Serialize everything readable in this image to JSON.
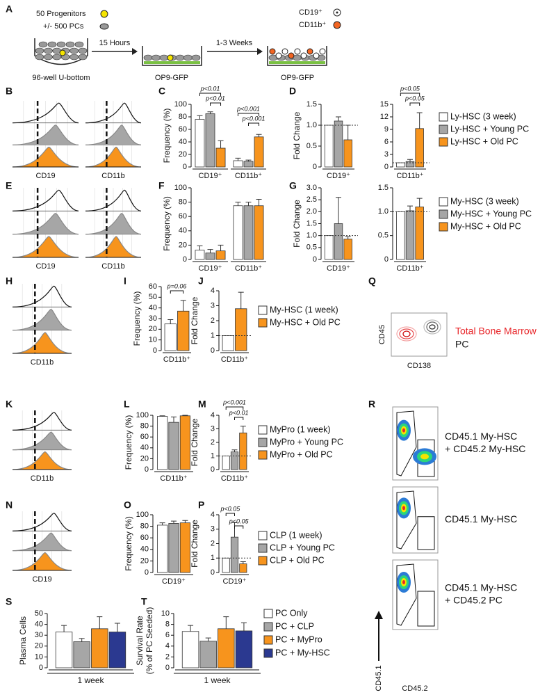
{
  "panel_labels": [
    "A",
    "B",
    "C",
    "D",
    "E",
    "F",
    "G",
    "H",
    "I",
    "J",
    "Q",
    "K",
    "L",
    "M",
    "R",
    "N",
    "O",
    "P",
    "S",
    "T"
  ],
  "schematic": {
    "progenitors": "50 Progenitors",
    "pcs": "+/- 500 PCs",
    "plate": "96-well U-bottom",
    "step1": "15 Hours",
    "stroma1": "OP9-GFP",
    "step2": "1-3 Weeks",
    "stroma2": "OP9-GFP",
    "marker1": "CD19⁺",
    "marker2": "CD11b⁺"
  },
  "histograms": {
    "B": [
      "CD19",
      "CD11b"
    ],
    "E": [
      "CD19",
      "CD11b"
    ],
    "H": [
      "CD11b"
    ],
    "K": [
      "CD11b"
    ],
    "N": [
      "CD19"
    ]
  },
  "flow_q": {
    "ylabel": "CD45",
    "xlabel": "CD138",
    "legend": [
      "Total Bone Marrow",
      "PC"
    ]
  },
  "flow_r": {
    "labels": [
      [
        "CD45.1 My-HSC",
        "+ CD45.2 My-HSC"
      ],
      [
        "CD45.1 My-HSC"
      ],
      [
        "CD45.1 My-HSC",
        "+ CD45.2 PC"
      ]
    ],
    "ylabel": "CD45.1",
    "xlabel": "CD45.2"
  },
  "chart_data": [
    {
      "type": "bar",
      "ylabel": [
        "Frequency (%)"
      ],
      "categories": [
        "CD19⁺",
        "CD11b⁺"
      ],
      "ylim": [
        0,
        100
      ],
      "yticks": [
        0,
        20,
        40,
        60,
        80,
        100
      ],
      "series": [
        {
          "color": "#ffffff",
          "values": [
            76,
            10
          ],
          "errors": [
            6,
            4
          ]
        },
        {
          "color": "#a6a6a6",
          "values": [
            85,
            9
          ],
          "errors": [
            3,
            2
          ]
        },
        {
          "color": "#f7941d",
          "values": [
            30,
            48
          ],
          "errors": [
            12,
            4
          ]
        }
      ],
      "annotations": [
        "p<0.01",
        "p<0.01",
        "p<0.001",
        "p<0.001"
      ]
    },
    {
      "type": "bar",
      "ylabel": [
        "Fold Change"
      ],
      "categories": [
        "CD19⁺"
      ],
      "ylim": [
        0,
        1.5
      ],
      "yticks": [
        0,
        0.5,
        {
          "value": 1,
          "label": "1.0"
        },
        1.5
      ],
      "refline": 1,
      "series": [
        {
          "color": "#ffffff",
          "values": [
            1
          ],
          "errors": [
            null
          ]
        },
        {
          "color": "#a6a6a6",
          "values": [
            1.1
          ],
          "errors": [
            0.1
          ]
        },
        {
          "color": "#f7941d",
          "values": [
            0.65
          ],
          "errors": [
            0.35
          ]
        }
      ]
    },
    {
      "type": "bar",
      "categories": [
        "CD11b⁺"
      ],
      "ylim": [
        0,
        15
      ],
      "yticks": [
        0,
        3,
        6,
        9,
        12,
        15
      ],
      "refline": 1,
      "series": [
        {
          "name": "Ly-HSC (3 week)",
          "color": "#ffffff",
          "values": [
            1
          ],
          "errors": [
            null
          ]
        },
        {
          "name": "Ly-HSC + Young PC",
          "color": "#a6a6a6",
          "values": [
            1.3
          ],
          "errors": [
            0.5
          ]
        },
        {
          "name": "Ly-HSC + Old PC",
          "color": "#f7941d",
          "values": [
            9.2
          ],
          "errors": [
            3.8
          ]
        }
      ],
      "annotations": [
        "p<0.05",
        "p<0.05"
      ]
    },
    {
      "type": "bar",
      "ylabel": [
        "Frequency (%)"
      ],
      "categories": [
        "CD19⁺",
        "CD11b⁺"
      ],
      "ylim": [
        0,
        100
      ],
      "yticks": [
        0,
        20,
        40,
        60,
        80,
        100
      ],
      "series": [
        {
          "color": "#ffffff",
          "values": [
            13,
            75
          ],
          "errors": [
            6,
            5
          ]
        },
        {
          "color": "#a6a6a6",
          "values": [
            9,
            75
          ],
          "errors": [
            5,
            5
          ]
        },
        {
          "color": "#f7941d",
          "values": [
            12,
            75
          ],
          "errors": [
            8,
            9
          ]
        }
      ]
    },
    {
      "type": "bar",
      "ylabel": [
        "Fold Change"
      ],
      "categories": [
        "CD19⁺"
      ],
      "ylim": [
        0,
        3
      ],
      "yticks": [
        0,
        0.5,
        {
          "value": 1,
          "label": "1.0"
        },
        1.5,
        {
          "value": 2,
          "label": "2.0"
        },
        2.5,
        {
          "value": 3,
          "label": "3.0"
        }
      ],
      "refline": 1,
      "series": [
        {
          "color": "#ffffff",
          "values": [
            1
          ],
          "errors": [
            null
          ]
        },
        {
          "color": "#a6a6a6",
          "values": [
            1.5
          ],
          "errors": [
            1.1
          ]
        },
        {
          "color": "#f7941d",
          "values": [
            0.85
          ],
          "errors": [
            0.1
          ]
        }
      ]
    },
    {
      "type": "bar",
      "categories": [
        "CD11b⁺"
      ],
      "ylim": [
        0,
        1.5
      ],
      "yticks": [
        0,
        0.5,
        {
          "value": 1,
          "label": "1.0"
        },
        1.5
      ],
      "refline": 1,
      "series": [
        {
          "name": "My-HSC (3 week)",
          "color": "#ffffff",
          "values": [
            1
          ],
          "errors": [
            null
          ]
        },
        {
          "name": "My-HSC + Young PC",
          "color": "#a6a6a6",
          "values": [
            1.02
          ],
          "errors": [
            0.1
          ]
        },
        {
          "name": "My-HSC + Old PC",
          "color": "#f7941d",
          "values": [
            1.1
          ],
          "errors": [
            0.18
          ]
        }
      ]
    },
    {
      "type": "bar",
      "ylabel": [
        "Frequency (%)"
      ],
      "categories": [
        "CD11b⁺"
      ],
      "ylim": [
        0,
        60
      ],
      "yticks": [
        0,
        10,
        20,
        30,
        40,
        50,
        60
      ],
      "series": [
        {
          "color": "#ffffff",
          "values": [
            25
          ],
          "errors": [
            4
          ]
        },
        {
          "color": "#f7941d",
          "values": [
            37
          ],
          "errors": [
            10
          ]
        }
      ],
      "annotations": [
        "p=0.06"
      ]
    },
    {
      "type": "bar",
      "ylabel": [
        "Fold Change"
      ],
      "categories": [
        "CD11b⁺"
      ],
      "ylim": [
        0,
        4
      ],
      "yticks": [
        0,
        1,
        2,
        3,
        4
      ],
      "refline": 1,
      "series": [
        {
          "name": "My-HSC (1 week)",
          "color": "#ffffff",
          "values": [
            1
          ],
          "errors": [
            null
          ]
        },
        {
          "name": "My-HSC + Old PC",
          "color": "#f7941d",
          "values": [
            2.8
          ],
          "errors": [
            1.1
          ]
        }
      ]
    },
    {
      "type": "bar",
      "ylabel": [
        "Frequency (%)"
      ],
      "categories": [
        "CD11b⁺"
      ],
      "ylim": [
        0,
        100
      ],
      "yticks": [
        0,
        20,
        40,
        60,
        80,
        100
      ],
      "series": [
        {
          "color": "#ffffff",
          "values": [
            98
          ],
          "errors": [
            1
          ]
        },
        {
          "color": "#a6a6a6",
          "values": [
            87
          ],
          "errors": [
            10
          ]
        },
        {
          "color": "#f7941d",
          "values": [
            99
          ],
          "errors": [
            1
          ]
        }
      ]
    },
    {
      "type": "bar",
      "ylabel": [
        "Fold Change"
      ],
      "categories": [
        "CD11b⁺"
      ],
      "ylim": [
        0,
        4
      ],
      "yticks": [
        0,
        1,
        2,
        3,
        4
      ],
      "refline": 1,
      "series": [
        {
          "name": "MyPro (1 week)",
          "color": "#ffffff",
          "values": [
            1
          ],
          "errors": [
            null
          ]
        },
        {
          "name": "MyPro + Young PC",
          "color": "#a6a6a6",
          "values": [
            1.3
          ],
          "errors": [
            0.15
          ]
        },
        {
          "name": "MyPro + Old PC",
          "color": "#f7941d",
          "values": [
            2.7
          ],
          "errors": [
            0.5
          ]
        }
      ],
      "annotations": [
        "p<0.001",
        "p<0.01"
      ]
    },
    {
      "type": "bar",
      "ylabel": [
        "Frequency (%)"
      ],
      "categories": [
        "CD19⁺"
      ],
      "ylim": [
        0,
        100
      ],
      "yticks": [
        0,
        20,
        40,
        60,
        80,
        100
      ],
      "series": [
        {
          "color": "#ffffff",
          "values": [
            82
          ],
          "errors": [
            4
          ]
        },
        {
          "color": "#a6a6a6",
          "values": [
            85
          ],
          "errors": [
            4
          ]
        },
        {
          "color": "#f7941d",
          "values": [
            86
          ],
          "errors": [
            4
          ]
        }
      ]
    },
    {
      "type": "bar",
      "ylabel": [
        "Fold Change"
      ],
      "categories": [
        "CD19⁺"
      ],
      "ylim": [
        0,
        4
      ],
      "yticks": [
        0,
        1,
        2,
        3,
        4
      ],
      "refline": 1,
      "series": [
        {
          "name": "CLP (1 week)",
          "color": "#ffffff",
          "values": [
            1
          ],
          "errors": [
            null
          ]
        },
        {
          "name": "CLP + Young PC",
          "color": "#a6a6a6",
          "values": [
            2.45
          ],
          "errors": [
            1.0
          ]
        },
        {
          "name": "CLP + Old PC",
          "color": "#f7941d",
          "values": [
            0.6
          ],
          "errors": [
            0.15
          ]
        }
      ],
      "annotations": [
        "p<0.05",
        "p<0.05"
      ]
    },
    {
      "type": "bar",
      "ylabel": [
        "Plasma Cells"
      ],
      "xlabel": "1 week",
      "categories": [
        null
      ],
      "ylim": [
        0,
        50
      ],
      "yticks": [
        0,
        10,
        20,
        30,
        40,
        50
      ],
      "series": [
        {
          "color": "#ffffff",
          "values": [
            33
          ],
          "errors": [
            6
          ]
        },
        {
          "color": "#a6a6a6",
          "values": [
            24
          ],
          "errors": [
            3
          ]
        },
        {
          "color": "#f7941d",
          "values": [
            36
          ],
          "errors": [
            11
          ]
        },
        {
          "color": "#2b3990",
          "values": [
            33
          ],
          "errors": [
            8
          ]
        }
      ]
    },
    {
      "type": "bar",
      "ylabel": [
        "Survival Rate",
        "(% of PC Seeded)"
      ],
      "xlabel": "1 week",
      "categories": [
        null
      ],
      "ylim": [
        0,
        10
      ],
      "yticks": [
        0,
        2,
        4,
        6,
        8,
        10
      ],
      "series": [
        {
          "name": "PC Only",
          "color": "#ffffff",
          "values": [
            6.7
          ],
          "errors": [
            1.1
          ]
        },
        {
          "name": "PC + CLP",
          "color": "#a6a6a6",
          "values": [
            4.9
          ],
          "errors": [
            0.6
          ]
        },
        {
          "name": "PC + MyPro",
          "color": "#f7941d",
          "values": [
            7.2
          ],
          "errors": [
            2.2
          ]
        },
        {
          "name": "PC + My-HSC",
          "color": "#2b3990",
          "values": [
            6.8
          ],
          "errors": [
            1.5
          ]
        }
      ]
    }
  ]
}
